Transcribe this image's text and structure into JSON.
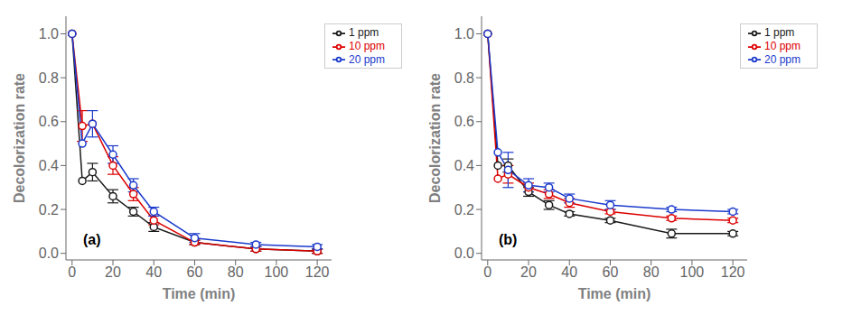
{
  "chart_data": [
    {
      "type": "line",
      "annotation": "(a)",
      "xlabel": "Time (min)",
      "ylabel": "Decolorization rate",
      "x": [
        0,
        5,
        10,
        20,
        30,
        40,
        60,
        90,
        120
      ],
      "series": [
        {
          "name": "1 ppm",
          "color": "#1a1a1a",
          "marker": "o",
          "values": [
            1.0,
            0.33,
            0.37,
            0.26,
            0.19,
            0.12,
            0.05,
            0.02,
            0.01
          ],
          "errors": [
            0.0,
            0.0,
            0.04,
            0.03,
            0.02,
            0.02,
            0.01,
            0.01,
            0.01
          ]
        },
        {
          "name": "10 ppm",
          "color": "#dd0000",
          "marker": "o",
          "values": [
            1.0,
            0.58,
            0.59,
            0.4,
            0.27,
            0.15,
            0.05,
            0.02,
            0.01
          ],
          "errors": [
            0.0,
            0.07,
            0.0,
            0.04,
            0.03,
            0.02,
            0.01,
            0.01,
            0.01
          ]
        },
        {
          "name": "20 ppm",
          "color": "#1a3acc",
          "marker": "o",
          "values": [
            1.0,
            0.5,
            0.59,
            0.45,
            0.31,
            0.19,
            0.07,
            0.04,
            0.03
          ],
          "errors": [
            0.0,
            0.0,
            0.06,
            0.04,
            0.03,
            0.02,
            0.02,
            0.01,
            0.01
          ]
        }
      ],
      "xlim": [
        -3,
        127
      ],
      "ylim": [
        -0.03,
        1.08
      ],
      "xticks": [
        0,
        20,
        40,
        60,
        80,
        100,
        120
      ],
      "yticks": [
        {
          "value": 0,
          "label": "0.0"
        },
        0.2,
        0.4,
        0.6,
        0.8,
        {
          "value": 1,
          "label": "1.0"
        }
      ],
      "grid": false,
      "legend": "upper right"
    },
    {
      "type": "line",
      "annotation": "(b)",
      "xlabel": "Time (min)",
      "ylabel": "Decolorization rate",
      "x": [
        0,
        5,
        10,
        20,
        30,
        40,
        60,
        90,
        120
      ],
      "series": [
        {
          "name": "1 ppm",
          "color": "#1a1a1a",
          "marker": "o",
          "values": [
            1.0,
            0.4,
            0.4,
            0.28,
            0.22,
            0.18,
            0.15,
            0.09,
            0.09
          ],
          "errors": [
            0.0,
            0.0,
            0.03,
            0.02,
            0.02,
            0.01,
            0.01,
            0.02,
            0.01
          ]
        },
        {
          "name": "10 ppm",
          "color": "#dd0000",
          "marker": "o",
          "values": [
            1.0,
            0.34,
            0.36,
            0.3,
            0.27,
            0.23,
            0.19,
            0.16,
            0.15
          ],
          "errors": [
            0.0,
            0.0,
            0.04,
            0.02,
            0.02,
            0.02,
            0.01,
            0.01,
            0.01
          ]
        },
        {
          "name": "20 ppm",
          "color": "#1a3acc",
          "marker": "o",
          "values": [
            1.0,
            0.46,
            0.38,
            0.31,
            0.3,
            0.25,
            0.22,
            0.2,
            0.19
          ],
          "errors": [
            0.0,
            0.0,
            0.08,
            0.03,
            0.02,
            0.02,
            0.02,
            0.01,
            0.01
          ]
        }
      ],
      "xlim": [
        -3,
        127
      ],
      "ylim": [
        -0.03,
        1.08
      ],
      "xticks": [
        0,
        20,
        40,
        60,
        80,
        100,
        120
      ],
      "yticks": [
        {
          "value": 0,
          "label": "0.0"
        },
        0.2,
        0.4,
        0.6,
        0.8,
        {
          "value": 1,
          "label": "1.0"
        }
      ],
      "grid": false,
      "legend": "upper right"
    }
  ]
}
